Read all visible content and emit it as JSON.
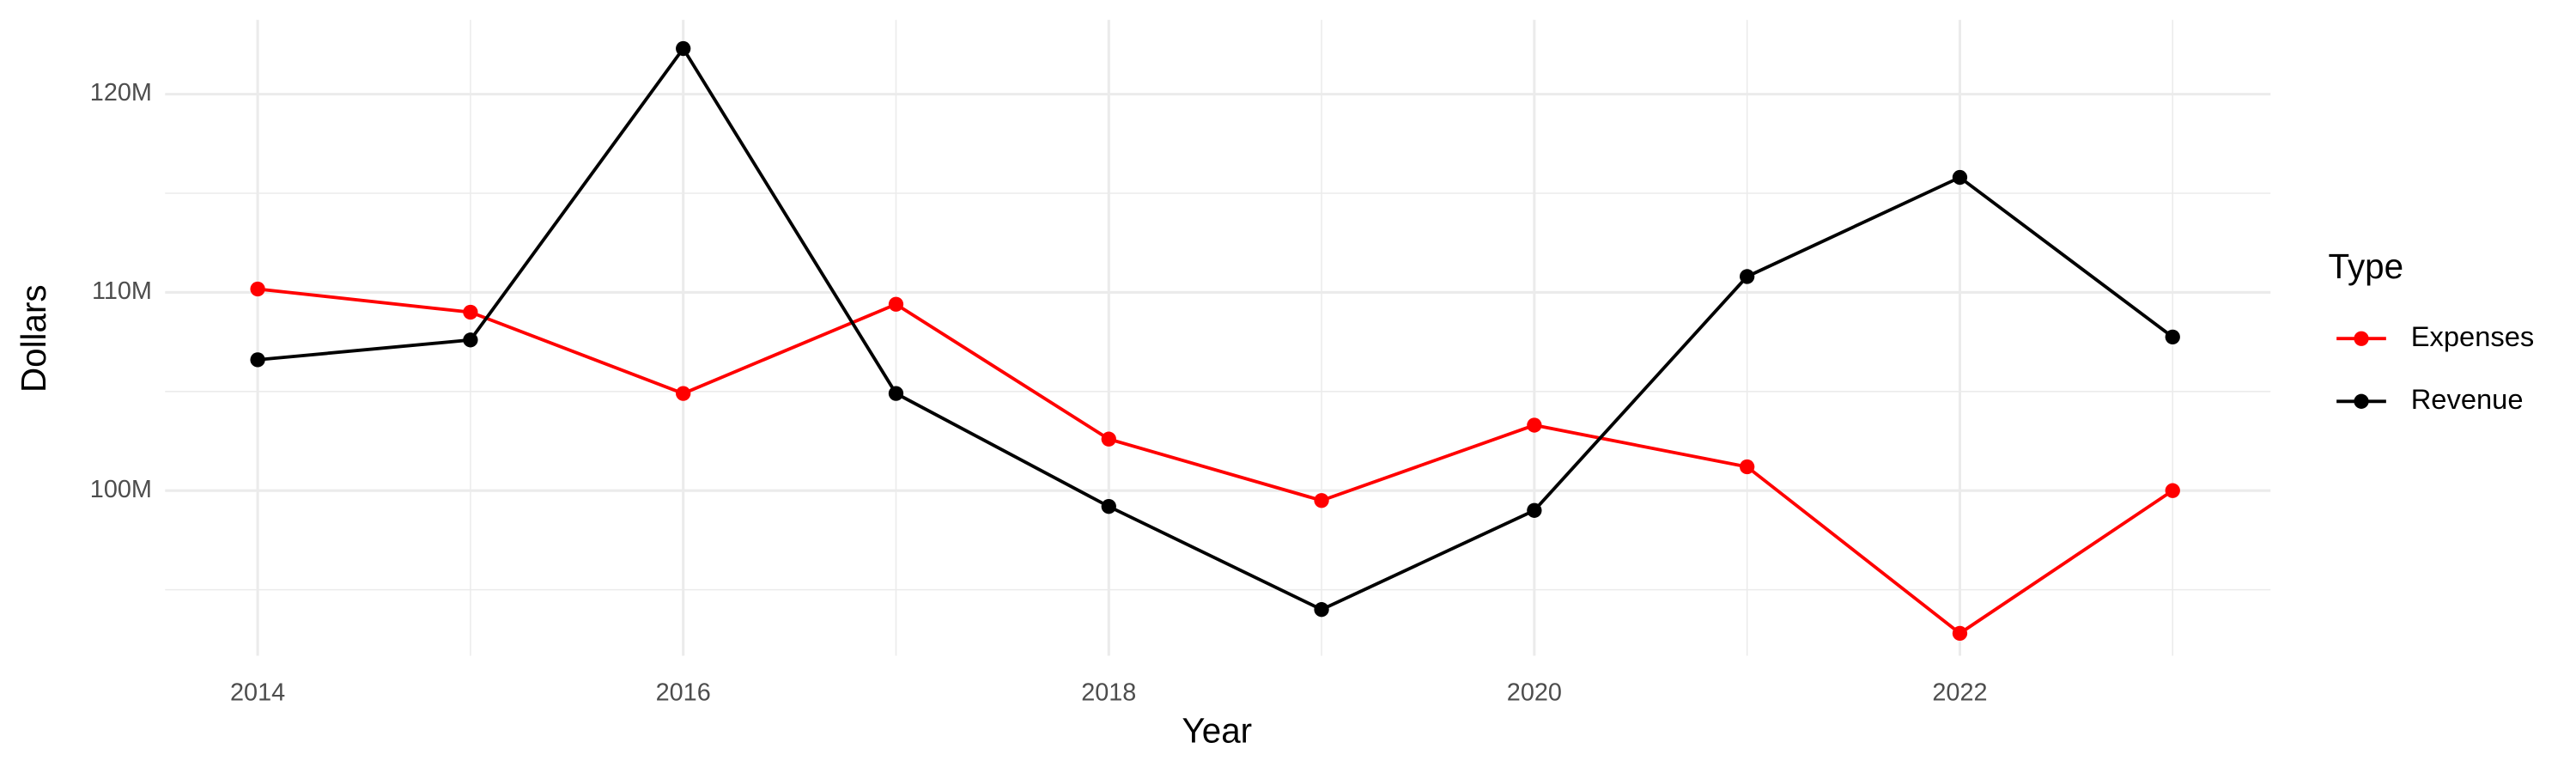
{
  "chart_data": {
    "type": "line",
    "x_label": "Year",
    "y_label": "Dollars",
    "legend_title": "Type",
    "legend_position": "right",
    "x": [
      2014,
      2015,
      2016,
      2017,
      2018,
      2019,
      2020,
      2021,
      2022,
      2023
    ],
    "series": [
      {
        "name": "Expenses",
        "color": "#ff0000",
        "values": [
          110170000,
          109000000,
          104900000,
          109400000,
          102600000,
          99500000,
          103300000,
          101200000,
          92800000,
          100000000
        ]
      },
      {
        "name": "Revenue",
        "color": "#000000",
        "values": [
          106600000,
          107600000,
          122300000,
          104900000,
          99200000,
          94000000,
          99000000,
          110800000,
          115800000,
          107750000
        ]
      }
    ],
    "xlim": [
      2013.565,
      2023.46
    ],
    "ylim": [
      91670000,
      123750000
    ],
    "xticks": [
      2014,
      2016,
      2018,
      2020,
      2022
    ],
    "yticks": [
      {
        "value": 100000000,
        "label": "100M"
      },
      {
        "value": 110000000,
        "label": "110M"
      },
      {
        "value": 120000000,
        "label": "120M"
      }
    ],
    "minor_xticks": [
      2015,
      2017,
      2019,
      2021,
      2023
    ],
    "minor_yticks": [
      95000000,
      105000000,
      115000000
    ],
    "grid": true
  }
}
